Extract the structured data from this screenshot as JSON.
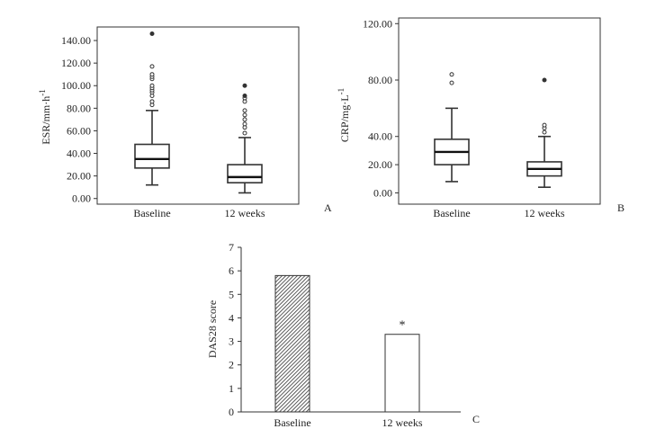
{
  "chart_data": [
    {
      "type": "box",
      "panel_label": "A",
      "ylabel": "ESR/mm·h",
      "ylabel_sup": "-1",
      "ylim": [
        -5,
        152
      ],
      "yticks": [
        "0.00",
        "20.00",
        "40.00",
        "60.00",
        "80.00",
        "100.00",
        "120.00",
        "140.00"
      ],
      "yticks_values": [
        0,
        20,
        40,
        60,
        80,
        100,
        120,
        140
      ],
      "categories": [
        "Baseline",
        "12 weeks"
      ],
      "boxes": [
        {
          "name": "Baseline",
          "whisker_low": 12,
          "q1": 27,
          "median": 35,
          "q3": 48,
          "whisker_high": 78,
          "outliers": [
            83,
            86,
            91,
            94,
            96,
            98,
            100,
            106,
            108,
            110,
            117
          ],
          "extremes": [
            146
          ]
        },
        {
          "name": "12 weeks",
          "whisker_low": 5,
          "q1": 14,
          "median": 19,
          "q3": 30,
          "whisker_high": 54,
          "outliers": [
            58,
            63,
            66,
            70,
            74,
            78,
            86,
            89
          ],
          "extremes": [
            91,
            100
          ]
        }
      ]
    },
    {
      "type": "box",
      "panel_label": "B",
      "ylabel": "CRP/mg·L",
      "ylabel_sup": "-1",
      "ylim": [
        -8,
        124
      ],
      "yticks": [
        "0.00",
        "20.00",
        "40.00",
        "80.00",
        "120.00"
      ],
      "yticks_values": [
        0,
        20,
        40,
        80,
        120
      ],
      "categories": [
        "Baseline",
        "12 weeks"
      ],
      "boxes": [
        {
          "name": "Baseline",
          "whisker_low": 8,
          "q1": 20,
          "median": 29,
          "q3": 38,
          "whisker_high": 60,
          "outliers": [
            78,
            84
          ],
          "extremes": []
        },
        {
          "name": "12 weeks",
          "whisker_low": 4,
          "q1": 12,
          "median": 17,
          "q3": 22,
          "whisker_high": 40,
          "outliers": [
            43,
            46,
            48
          ],
          "extremes": [
            80
          ]
        }
      ]
    },
    {
      "type": "bar",
      "panel_label": "C",
      "ylabel": "DAS28 score",
      "ylim": [
        0,
        7
      ],
      "yticks": [
        "0",
        "1",
        "2",
        "3",
        "4",
        "5",
        "6",
        "7"
      ],
      "yticks_values": [
        0,
        1,
        2,
        3,
        4,
        5,
        6,
        7
      ],
      "categories": [
        "Baseline",
        "12 weeks"
      ],
      "values": [
        5.8,
        3.3
      ],
      "annotations": [
        "",
        "*"
      ]
    }
  ]
}
